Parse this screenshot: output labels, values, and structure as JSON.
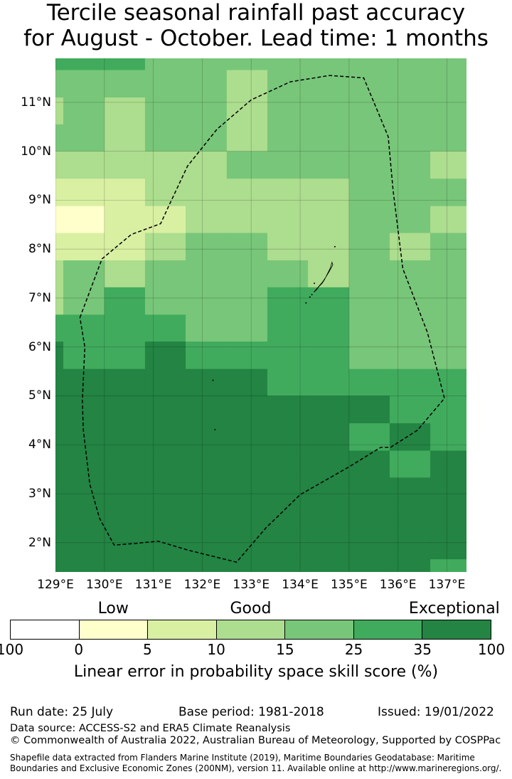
{
  "title_line1": "Tercile seasonal rainfall past accuracy",
  "title_line2": "for August - October. Lead time: 1 months",
  "map": {
    "lon_min": 129.0,
    "lon_max": 137.4,
    "lat_min": 1.4,
    "lat_max": 11.9,
    "x_ticks": [
      {
        "value": 129,
        "label": "129°E"
      },
      {
        "value": 130,
        "label": "130°E"
      },
      {
        "value": 131,
        "label": "131°E"
      },
      {
        "value": 132,
        "label": "132°E"
      },
      {
        "value": 133,
        "label": "133°E"
      },
      {
        "value": 134,
        "label": "134°E"
      },
      {
        "value": 135,
        "label": "135°E"
      },
      {
        "value": 136,
        "label": "136°E"
      },
      {
        "value": 137,
        "label": "137°E"
      }
    ],
    "y_ticks": [
      {
        "value": 11,
        "label": "11°N"
      },
      {
        "value": 10,
        "label": "10°N"
      },
      {
        "value": 9,
        "label": "9°N"
      },
      {
        "value": 8,
        "label": "8°N"
      },
      {
        "value": 7,
        "label": "7°N"
      },
      {
        "value": 6,
        "label": "6°N"
      },
      {
        "value": 5,
        "label": "5°N"
      },
      {
        "value": 4,
        "label": "4°N"
      },
      {
        "value": 3,
        "label": "3°N"
      },
      {
        "value": 2,
        "label": "2°N"
      }
    ],
    "grid_lon_edges": [
      129.0,
      129.16,
      130.0,
      130.83,
      131.66,
      132.5,
      133.33,
      134.16,
      135.0,
      135.83,
      136.66,
      137.4
    ],
    "grid_lat_edges": [
      11.9,
      11.66,
      11.1,
      10.55,
      10.0,
      9.44,
      8.88,
      8.33,
      7.77,
      7.22,
      6.66,
      6.11,
      5.55,
      5.0,
      4.44,
      3.88,
      3.33,
      2.77,
      2.22,
      1.66,
      1.4
    ],
    "grid_classes": [
      [
        5,
        5,
        5,
        4,
        4,
        4,
        4,
        4,
        4,
        4,
        4
      ],
      [
        4,
        4,
        4,
        4,
        4,
        3,
        4,
        4,
        4,
        4,
        4
      ],
      [
        3,
        4,
        3,
        4,
        4,
        3,
        4,
        4,
        4,
        4,
        4
      ],
      [
        4,
        4,
        3,
        4,
        4,
        3,
        4,
        4,
        4,
        4,
        4
      ],
      [
        3,
        3,
        3,
        3,
        3,
        4,
        4,
        4,
        4,
        4,
        3
      ],
      [
        2,
        2,
        2,
        3,
        3,
        3,
        3,
        3,
        4,
        4,
        4
      ],
      [
        1,
        1,
        2,
        2,
        3,
        3,
        3,
        3,
        4,
        4,
        3
      ],
      [
        2,
        2,
        2,
        3,
        4,
        4,
        3,
        3,
        4,
        3,
        4
      ],
      [
        3,
        4,
        3,
        4,
        4,
        4,
        4,
        3,
        4,
        4,
        4
      ],
      [
        3,
        4,
        5,
        4,
        4,
        4,
        5,
        5,
        4,
        4,
        4
      ],
      [
        5,
        5,
        5,
        5,
        4,
        4,
        5,
        5,
        4,
        4,
        4
      ],
      [
        6,
        5,
        5,
        6,
        5,
        5,
        5,
        5,
        4,
        4,
        4
      ],
      [
        6,
        6,
        6,
        6,
        6,
        6,
        5,
        5,
        5,
        5,
        5
      ],
      [
        6,
        6,
        6,
        6,
        6,
        6,
        6,
        6,
        6,
        5,
        5
      ],
      [
        6,
        6,
        6,
        6,
        6,
        6,
        6,
        6,
        5,
        6,
        5
      ],
      [
        6,
        6,
        6,
        6,
        6,
        6,
        6,
        6,
        6,
        5,
        6
      ],
      [
        6,
        6,
        6,
        6,
        6,
        6,
        6,
        6,
        6,
        6,
        6
      ],
      [
        6,
        6,
        6,
        6,
        6,
        6,
        6,
        6,
        6,
        6,
        6
      ],
      [
        6,
        6,
        6,
        6,
        6,
        6,
        6,
        6,
        6,
        6,
        6
      ],
      [
        6,
        6,
        6,
        6,
        6,
        6,
        6,
        6,
        6,
        6,
        5
      ]
    ],
    "eez_boundary": [
      [
        129.5,
        6.6
      ],
      [
        129.95,
        7.8
      ],
      [
        130.55,
        8.3
      ],
      [
        131.15,
        8.52
      ],
      [
        131.3,
        8.85
      ],
      [
        131.7,
        9.7
      ],
      [
        132.3,
        10.45
      ],
      [
        133.0,
        11.05
      ],
      [
        133.8,
        11.42
      ],
      [
        134.6,
        11.55
      ],
      [
        135.3,
        11.5
      ],
      [
        135.8,
        10.3
      ],
      [
        135.9,
        9.2
      ],
      [
        136.1,
        7.6
      ],
      [
        136.6,
        6.3
      ],
      [
        136.95,
        4.95
      ],
      [
        136.4,
        4.3
      ],
      [
        135.85,
        3.95
      ],
      [
        135.65,
        3.95
      ],
      [
        135.0,
        3.55
      ],
      [
        134.0,
        2.98
      ],
      [
        133.3,
        2.3
      ],
      [
        132.7,
        1.6
      ],
      [
        131.7,
        1.85
      ],
      [
        131.1,
        2.03
      ],
      [
        130.6,
        1.98
      ],
      [
        130.2,
        1.95
      ],
      [
        129.9,
        2.5
      ],
      [
        129.7,
        3.2
      ],
      [
        129.57,
        4.3
      ],
      [
        129.55,
        4.9
      ],
      [
        129.6,
        6.0
      ],
      [
        129.5,
        6.6
      ]
    ],
    "island_outline": [
      [
        134.65,
        7.73
      ],
      [
        134.62,
        7.62
      ],
      [
        134.56,
        7.5
      ],
      [
        134.5,
        7.38
      ],
      [
        134.45,
        7.3
      ],
      [
        134.38,
        7.23
      ],
      [
        134.33,
        7.16
      ],
      [
        134.28,
        7.12
      ],
      [
        134.35,
        7.2
      ],
      [
        134.46,
        7.33
      ],
      [
        134.52,
        7.42
      ],
      [
        134.6,
        7.55
      ],
      [
        134.67,
        7.68
      ],
      [
        134.65,
        7.73
      ]
    ],
    "island_dots": [
      [
        134.71,
        8.05
      ],
      [
        134.12,
        6.9
      ],
      [
        134.2,
        7.02
      ],
      [
        134.24,
        7.07
      ],
      [
        134.29,
        7.3
      ],
      [
        132.22,
        5.32
      ],
      [
        132.26,
        4.31
      ]
    ]
  },
  "legend": {
    "categories": [
      {
        "label": "Low",
        "center_value": 2.5
      },
      {
        "label": "Good",
        "center_value": 12.5
      },
      {
        "label": "Exceptional",
        "center_value": 65
      }
    ],
    "bins": [
      {
        "label": "100",
        "color": "#ffffff"
      },
      {
        "label": "0",
        "color": "#ffffcc"
      },
      {
        "label": "5",
        "color": "#d9f0a3"
      },
      {
        "label": "10",
        "color": "#addd8e"
      },
      {
        "label": "15",
        "color": "#78c679"
      },
      {
        "label": "25",
        "color": "#41ab5d"
      },
      {
        "label": "35",
        "color": "#238443"
      }
    ],
    "last_tick": "100",
    "label": "Linear error in probability space skill score (%)"
  },
  "footer": {
    "run_date": "Run date: 25 July",
    "base_period": "Base period: 1981-2018",
    "issued": "Issued: 19/01/2022",
    "data_source": "Data source: ACCESS-S2 and ERA5 Climate Reanalysis",
    "copyright": "© Commonwealth of Australia 2022, Australian Bureau of Meteorology, Supported by COSPPac",
    "shapefile_line1": "Shapefile data extracted from Flanders Marine Institute (2019), Maritime Boundaries Geodatabase: Maritime",
    "shapefile_line2": "Boundaries and Exclusive Economic Zones (200NM), version 11. Available online at http://www.marineregions.org/."
  }
}
